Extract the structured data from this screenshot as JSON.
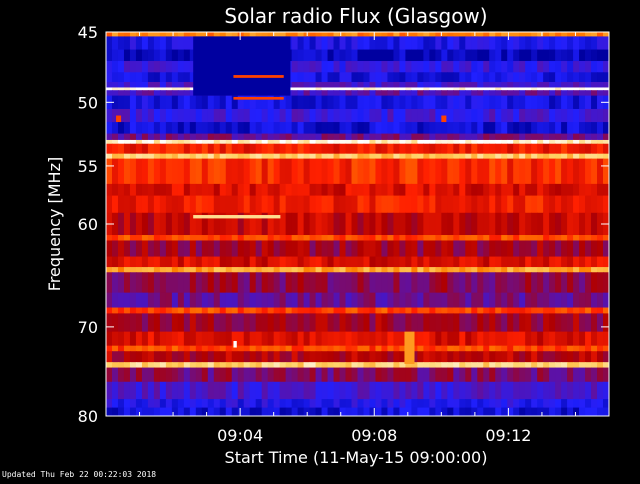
{
  "chart_data": {
    "type": "heatmap",
    "title": "Solar radio Flux (Glasgow)",
    "xlabel": "Start Time (11-May-15 09:00:00)",
    "ylabel": "Frequency [MHz]",
    "x_unit": "minutes after 09:00:00",
    "xlim": [
      0,
      15
    ],
    "ylim": [
      45,
      80
    ],
    "y_scale": "log",
    "x_ticks": [
      {
        "value": 4,
        "label": "09:04"
      },
      {
        "value": 8,
        "label": "09:08"
      },
      {
        "value": 12,
        "label": "09:12"
      }
    ],
    "y_ticks": [
      {
        "value": 45,
        "label": "45"
      },
      {
        "value": 50,
        "label": "50"
      },
      {
        "value": 55,
        "label": "55"
      },
      {
        "value": 60,
        "label": "60"
      },
      {
        "value": 70,
        "label": "70"
      },
      {
        "value": 80,
        "label": "80"
      }
    ],
    "colormap": [
      "#0000a0",
      "#2020ff",
      "#6010a0",
      "#b00000",
      "#ff2000",
      "#ff8000",
      "#ffd060",
      "#ffffff"
    ],
    "bands": [
      {
        "from": 45.0,
        "to": 45.3,
        "level": 0.72
      },
      {
        "from": 45.3,
        "to": 46.2,
        "level": 0.12
      },
      {
        "from": 46.2,
        "to": 47.0,
        "level": 0.04
      },
      {
        "from": 47.0,
        "to": 47.8,
        "level": 0.18
      },
      {
        "from": 47.8,
        "to": 48.5,
        "level": 0.1
      },
      {
        "from": 48.5,
        "to": 48.9,
        "level": 0.22
      },
      {
        "from": 48.9,
        "to": 49.1,
        "level": 1.0
      },
      {
        "from": 49.1,
        "to": 49.5,
        "level": 0.26
      },
      {
        "from": 49.5,
        "to": 50.5,
        "level": 0.1
      },
      {
        "from": 50.5,
        "to": 51.5,
        "level": 0.2
      },
      {
        "from": 51.5,
        "to": 52.4,
        "level": 0.08
      },
      {
        "from": 52.4,
        "to": 52.9,
        "level": 0.3
      },
      {
        "from": 52.9,
        "to": 53.2,
        "level": 0.96
      },
      {
        "from": 53.2,
        "to": 54.0,
        "level": 0.55
      },
      {
        "from": 54.0,
        "to": 54.4,
        "level": 0.85
      },
      {
        "from": 54.4,
        "to": 56.5,
        "level": 0.58
      },
      {
        "from": 56.5,
        "to": 57.5,
        "level": 0.5
      },
      {
        "from": 57.5,
        "to": 59.0,
        "level": 0.55
      },
      {
        "from": 59.0,
        "to": 61.0,
        "level": 0.46
      },
      {
        "from": 61.0,
        "to": 61.5,
        "level": 0.62
      },
      {
        "from": 61.5,
        "to": 63.0,
        "level": 0.4
      },
      {
        "from": 63.0,
        "to": 64.0,
        "level": 0.5
      },
      {
        "from": 64.0,
        "to": 64.5,
        "level": 0.78
      },
      {
        "from": 64.5,
        "to": 66.5,
        "level": 0.36
      },
      {
        "from": 66.5,
        "to": 68.0,
        "level": 0.3
      },
      {
        "from": 68.0,
        "to": 68.6,
        "level": 0.62
      },
      {
        "from": 68.6,
        "to": 70.5,
        "level": 0.4
      },
      {
        "from": 70.5,
        "to": 72.0,
        "level": 0.5
      },
      {
        "from": 72.0,
        "to": 72.6,
        "level": 0.62
      },
      {
        "from": 72.6,
        "to": 73.8,
        "level": 0.44
      },
      {
        "from": 73.8,
        "to": 74.4,
        "level": 0.88
      },
      {
        "from": 74.4,
        "to": 76.0,
        "level": 0.34
      },
      {
        "from": 76.0,
        "to": 78.0,
        "level": 0.22
      },
      {
        "from": 78.0,
        "to": 79.0,
        "level": 0.14
      },
      {
        "from": 79.0,
        "to": 80.0,
        "level": 0.08
      }
    ],
    "features": [
      {
        "t0": 2.6,
        "t1": 5.5,
        "f0": 45.3,
        "f1": 49.5,
        "level": 0.0
      },
      {
        "t0": 3.8,
        "t1": 5.3,
        "f0": 48.0,
        "f1": 48.2,
        "level": 0.62
      },
      {
        "t0": 3.8,
        "t1": 5.3,
        "f0": 49.6,
        "f1": 49.8,
        "level": 0.62
      },
      {
        "t0": 2.6,
        "t1": 5.2,
        "f0": 59.2,
        "f1": 59.5,
        "level": 0.9
      },
      {
        "t0": 8.9,
        "t1": 9.2,
        "f0": 70.5,
        "f1": 74.0,
        "level": 0.76
      },
      {
        "t0": 3.8,
        "t1": 3.9,
        "f0": 71.5,
        "f1": 72.2,
        "level": 1.0
      },
      {
        "t0": 0.3,
        "t1": 0.45,
        "f0": 51.0,
        "f1": 51.5,
        "level": 0.62
      },
      {
        "t0": 10.0,
        "t1": 10.15,
        "f0": 51.0,
        "f1": 51.5,
        "level": 0.62
      }
    ]
  },
  "footer": {
    "updated": "Updated Thu Feb 22 00:22:03 2018"
  }
}
